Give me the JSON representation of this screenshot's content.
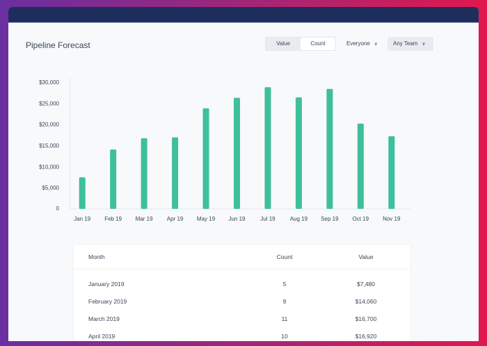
{
  "header": {
    "title": "Pipeline Forecast"
  },
  "controls": {
    "toggle": [
      {
        "label": "Value",
        "selected": false
      },
      {
        "label": "Count",
        "selected": true
      }
    ],
    "owner_filter": "Everyone",
    "team_filter": "Any Team"
  },
  "colors": {
    "bar": "#3fbf9b",
    "topbar": "#1e2e5c"
  },
  "chart_data": {
    "type": "bar",
    "categories": [
      "Jan 19",
      "Feb 19",
      "Mar 19",
      "Apr 19",
      "May 19",
      "Jun 19",
      "Jul 19",
      "Aug 19",
      "Sep 19",
      "Oct 19",
      "Nov 19"
    ],
    "values": [
      7480,
      14060,
      16700,
      16920,
      23800,
      26300,
      28800,
      26400,
      28400,
      20200,
      17200
    ],
    "ylim": [
      0,
      30000
    ],
    "yticks": [
      "0",
      "$5,000",
      "$10,000",
      "$15,000",
      "$20,000",
      "$25,000",
      "$30,000"
    ],
    "grid": false
  },
  "table": {
    "columns": [
      "Month",
      "Count",
      "Value"
    ],
    "rows": [
      [
        "January 2019",
        "5",
        "$7,480"
      ],
      [
        "February 2019",
        "9",
        "$14,060"
      ],
      [
        "March 2019",
        "11",
        "$16,700"
      ],
      [
        "April 2019",
        "10",
        "$16,920"
      ]
    ]
  }
}
